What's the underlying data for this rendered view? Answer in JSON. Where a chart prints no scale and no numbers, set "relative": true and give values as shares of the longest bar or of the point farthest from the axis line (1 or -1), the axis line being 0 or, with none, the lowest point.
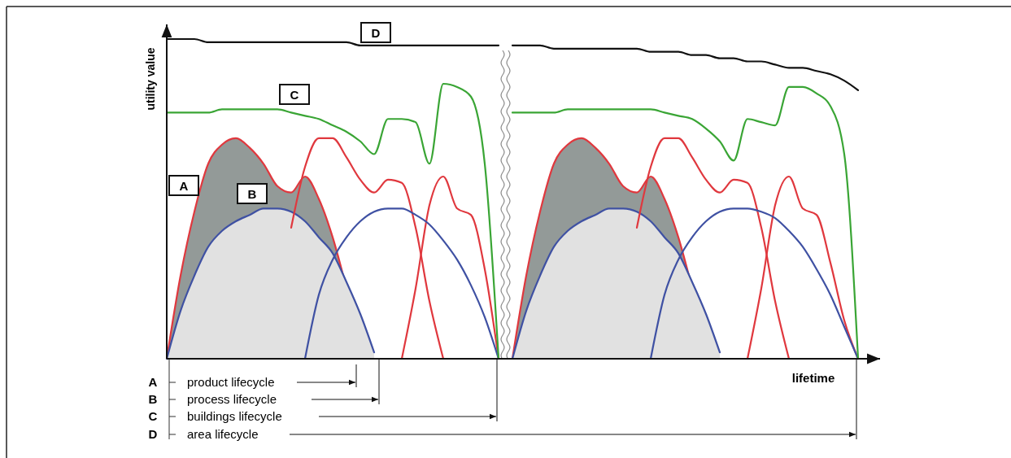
{
  "chart_data": {
    "type": "line",
    "relative": true,
    "xlabel": "lifetime",
    "ylabel": "utility value",
    "categories": [
      null,
      null,
      null,
      null,
      null,
      null,
      null,
      null,
      null,
      null,
      null,
      null,
      null,
      null,
      null,
      null,
      null,
      null,
      null,
      null,
      null,
      null,
      null,
      null,
      null,
      null,
      null,
      null,
      null,
      null,
      null,
      null,
      null,
      null,
      null,
      null,
      null,
      null,
      null,
      null,
      null,
      null,
      null,
      null,
      null,
      null,
      null,
      null,
      null,
      null,
      null
    ],
    "annotations": [
      "A",
      "B",
      "C",
      "D",
      "A",
      "product lifecycle",
      "B",
      "process lifecycle",
      "C",
      "buildings lifecycle",
      "D",
      "area lifecycle"
    ],
    "series": [
      {
        "type": "area",
        "color": "#e0383e",
        "values": [
          0,
          0.26,
          0.46,
          0.61,
          0.67,
          0.69,
          0.66,
          0.61,
          0.54,
          0.52,
          0.57,
          0.5,
          0.38,
          0.22,
          null,
          null,
          null,
          null,
          null,
          null,
          null,
          null,
          null,
          null,
          null,
          null,
          null,
          null,
          null,
          null,
          null,
          null,
          null,
          null,
          null,
          null,
          null,
          null,
          null,
          null,
          null,
          null,
          null,
          null,
          null,
          null,
          null,
          null,
          null,
          null,
          null
        ]
      },
      {
        "type": "area",
        "color": "#3f51a3",
        "values": [
          0,
          0.15,
          0.26,
          0.35,
          0.4,
          0.43,
          0.45,
          0.47,
          0.47,
          0.46,
          0.43,
          0.38,
          0.33,
          0.24,
          0.14,
          0.02,
          null,
          null,
          null,
          null,
          null,
          null,
          null,
          null,
          null,
          null,
          null,
          null,
          null,
          null,
          null,
          null,
          null,
          null,
          null,
          null,
          null,
          null,
          null,
          null,
          null,
          null,
          null,
          null,
          null,
          null,
          null,
          null,
          null,
          null,
          null
        ]
      },
      {
        "type": "area",
        "color": "#e0383e",
        "values": [
          null,
          null,
          null,
          null,
          null,
          null,
          null,
          null,
          null,
          null,
          null,
          null,
          null,
          null,
          null,
          null,
          null,
          null,
          null,
          null,
          null,
          null,
          null,
          null,
          null,
          0,
          0.26,
          0.46,
          0.61,
          0.67,
          0.69,
          0.66,
          0.61,
          0.54,
          0.52,
          0.57,
          0.5,
          0.38,
          0.22,
          null,
          null,
          null,
          null,
          null,
          null,
          null,
          null,
          null,
          null,
          null,
          null
        ]
      },
      {
        "type": "area",
        "color": "#3f51a3",
        "values": [
          null,
          null,
          null,
          null,
          null,
          null,
          null,
          null,
          null,
          null,
          null,
          null,
          null,
          null,
          null,
          null,
          null,
          null,
          null,
          null,
          null,
          null,
          null,
          null,
          null,
          0,
          0.15,
          0.26,
          0.35,
          0.4,
          0.43,
          0.45,
          0.47,
          0.47,
          0.46,
          0.43,
          0.38,
          0.33,
          0.24,
          0.14,
          0.02,
          null,
          null,
          null,
          null,
          null,
          null,
          null,
          null,
          null,
          null
        ]
      },
      {
        "color": "#e0383e",
        "values": [
          null,
          null,
          null,
          null,
          null,
          null,
          null,
          null,
          null,
          0.41,
          0.6,
          0.69,
          0.69,
          0.63,
          0.56,
          0.52,
          0.56,
          0.55,
          0.41,
          0.18,
          0,
          null,
          null,
          null,
          null,
          null,
          null,
          null,
          null,
          null,
          null,
          null,
          null,
          null,
          null,
          null,
          null,
          null,
          null,
          null,
          null,
          null,
          null,
          null,
          null,
          null,
          null,
          null,
          null,
          null,
          null
        ]
      },
      {
        "color": "#e0383e",
        "values": [
          null,
          null,
          null,
          null,
          null,
          null,
          null,
          null,
          null,
          null,
          null,
          null,
          null,
          null,
          null,
          null,
          null,
          0,
          0.22,
          0.48,
          0.57,
          0.47,
          0.45,
          0.28,
          0,
          null,
          null,
          null,
          null,
          null,
          null,
          null,
          null,
          null,
          null,
          null,
          null,
          null,
          null,
          null,
          null,
          null,
          null,
          null,
          null,
          null,
          null,
          null,
          null,
          null,
          null
        ]
      },
      {
        "color": "#e0383e",
        "values": [
          null,
          null,
          null,
          null,
          null,
          null,
          null,
          null,
          null,
          null,
          null,
          null,
          null,
          null,
          null,
          null,
          null,
          null,
          null,
          null,
          null,
          null,
          null,
          null,
          null,
          null,
          null,
          null,
          null,
          null,
          null,
          null,
          null,
          null,
          0.41,
          0.6,
          0.69,
          0.69,
          0.63,
          0.56,
          0.52,
          0.56,
          0.55,
          0.41,
          0.18,
          0,
          null,
          null,
          null,
          null,
          null
        ]
      },
      {
        "color": "#e0383e",
        "values": [
          null,
          null,
          null,
          null,
          null,
          null,
          null,
          null,
          null,
          null,
          null,
          null,
          null,
          null,
          null,
          null,
          null,
          null,
          null,
          null,
          null,
          null,
          null,
          null,
          null,
          null,
          null,
          null,
          null,
          null,
          null,
          null,
          null,
          null,
          null,
          null,
          null,
          null,
          null,
          null,
          null,
          null,
          0,
          0.22,
          0.48,
          0.57,
          0.47,
          0.45,
          0.3,
          0.12,
          0
        ]
      },
      {
        "color": "#3f51a3",
        "values": [
          null,
          null,
          null,
          null,
          null,
          null,
          null,
          null,
          null,
          null,
          0,
          0.2,
          0.31,
          0.38,
          0.43,
          0.46,
          0.47,
          0.47,
          0.45,
          0.42,
          0.37,
          0.31,
          0.23,
          0.13,
          0,
          null,
          null,
          null,
          null,
          null,
          null,
          null,
          null,
          null,
          null,
          null,
          null,
          null,
          null,
          null,
          null,
          null,
          null,
          null,
          null,
          null,
          null,
          null,
          null,
          null,
          null
        ]
      },
      {
        "color": "#3f51a3",
        "values": [
          null,
          null,
          null,
          null,
          null,
          null,
          null,
          null,
          null,
          null,
          null,
          null,
          null,
          null,
          null,
          null,
          null,
          null,
          null,
          null,
          null,
          null,
          null,
          null,
          null,
          null,
          null,
          null,
          null,
          null,
          null,
          null,
          null,
          null,
          null,
          0,
          0.2,
          0.31,
          0.38,
          0.43,
          0.46,
          0.47,
          0.47,
          0.46,
          0.44,
          0.4,
          0.35,
          0.28,
          0.2,
          0.1,
          0
        ]
      },
      {
        "color": "#3aa535",
        "values": [
          0.77,
          0.77,
          0.77,
          0.77,
          0.78,
          0.78,
          0.78,
          0.78,
          0.78,
          0.77,
          0.76,
          0.75,
          0.73,
          0.71,
          0.68,
          0.64,
          0.75,
          0.75,
          0.74,
          0.61,
          0.86,
          0.85,
          0.82,
          0.61,
          0,
          null,
          null,
          null,
          null,
          null,
          null,
          null,
          null,
          null,
          null,
          null,
          null,
          null,
          null,
          null,
          null,
          null,
          null,
          null,
          null,
          null,
          null,
          null,
          null,
          null,
          null
        ]
      },
      {
        "color": "#3aa535",
        "values": [
          null,
          null,
          null,
          null,
          null,
          null,
          null,
          null,
          null,
          null,
          null,
          null,
          null,
          null,
          null,
          null,
          null,
          null,
          null,
          null,
          null,
          null,
          null,
          null,
          null,
          0.77,
          0.77,
          0.77,
          0.77,
          0.78,
          0.78,
          0.78,
          0.78,
          0.78,
          0.78,
          0.78,
          0.77,
          0.76,
          0.75,
          0.72,
          0.68,
          0.62,
          0.75,
          0.74,
          0.73,
          0.85,
          0.85,
          0.83,
          0.79,
          0.64,
          0
        ]
      },
      {
        "color": "#111111",
        "values": [
          1.0,
          1.0,
          1.0,
          0.99,
          0.99,
          0.99,
          0.99,
          0.99,
          0.99,
          0.99,
          0.99,
          0.99,
          0.99,
          0.99,
          0.98,
          0.98,
          0.98,
          0.98,
          0.98,
          0.98,
          0.98,
          0.98,
          0.98,
          0.98,
          0.98,
          null,
          null,
          null,
          null,
          null,
          null,
          null,
          null,
          null,
          null,
          null,
          null,
          null,
          null,
          null,
          null,
          null,
          null,
          null,
          null,
          null,
          null,
          null,
          null,
          null,
          null
        ]
      },
      {
        "color": "#111111",
        "values": [
          null,
          null,
          null,
          null,
          null,
          null,
          null,
          null,
          null,
          null,
          null,
          null,
          null,
          null,
          null,
          null,
          null,
          null,
          null,
          null,
          null,
          null,
          null,
          null,
          null,
          0.98,
          0.98,
          0.98,
          0.97,
          0.97,
          0.97,
          0.97,
          0.97,
          0.97,
          0.97,
          0.96,
          0.96,
          0.96,
          0.95,
          0.95,
          0.94,
          0.94,
          0.93,
          0.93,
          0.92,
          0.91,
          0.91,
          0.9,
          0.89,
          0.87,
          0.84
        ]
      }
    ]
  }
}
